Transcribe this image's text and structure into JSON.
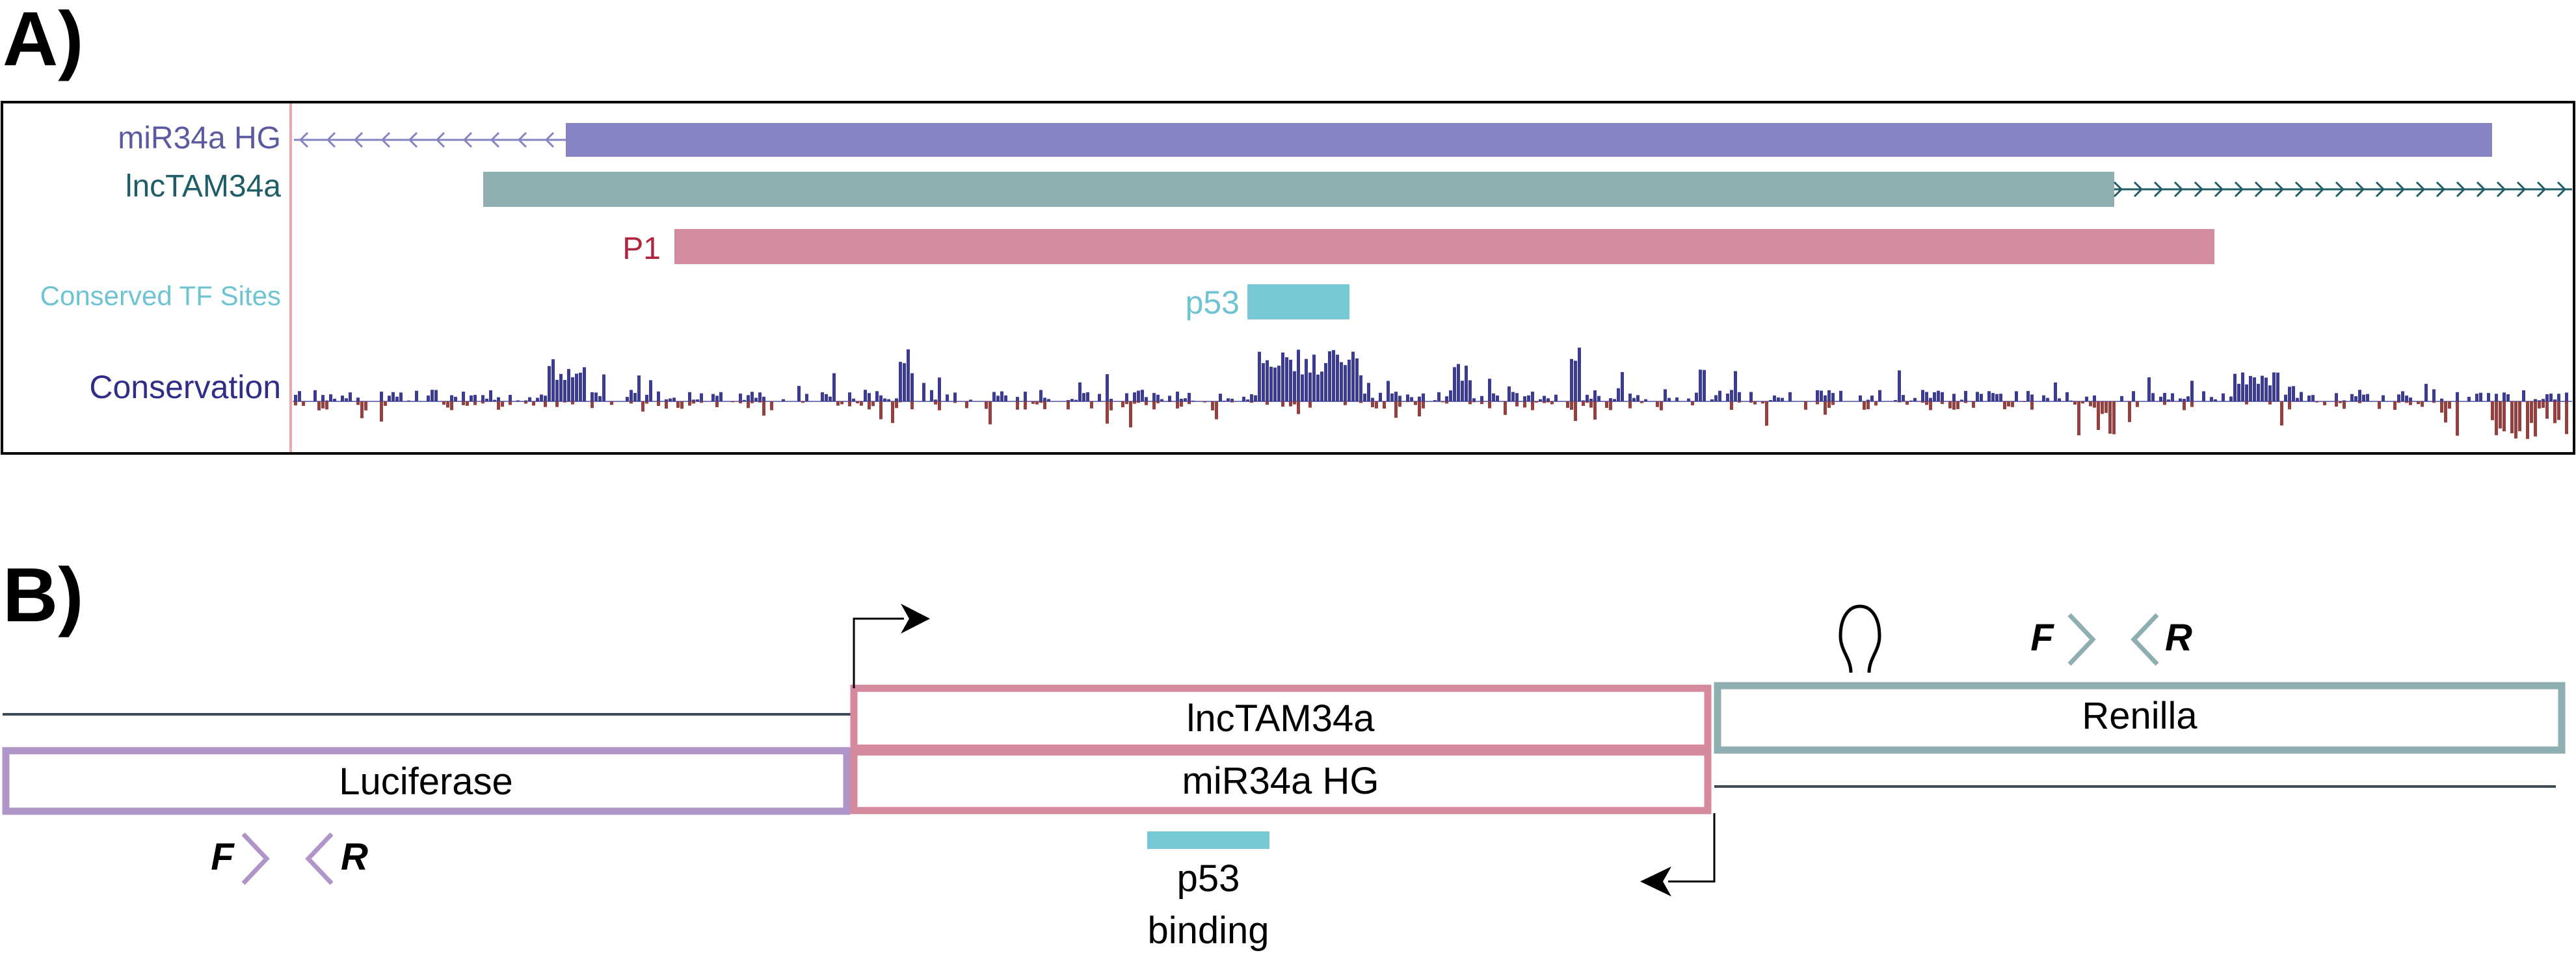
{
  "panel_a": {
    "letter": "A)",
    "tracks": {
      "mir34a_hg": {
        "label": "miR34a HG",
        "color": "#8583c1",
        "label_color": "#5b5aa0"
      },
      "lnctam34a": {
        "label": "lncTAM34a",
        "color": "#8eaeb1",
        "label_color": "#1f5e66"
      },
      "p1": {
        "label": "P1",
        "color": "#d68ca0",
        "label_color": "#b0243f"
      },
      "tf_sites": {
        "label": "Conserved TF Sites",
        "color": "#75c8d4",
        "label_color": "#6ec4d3"
      },
      "p53": {
        "label": "p53",
        "color": "#75c8d4"
      },
      "conservation": {
        "label": "Conservation",
        "label_color": "#2f2d86",
        "pos_color": "#3b3b91",
        "neg_color": "#94403f"
      }
    }
  },
  "panel_b": {
    "letter": "B)",
    "lnctam34a_box": "lncTAM34a",
    "mir34a_box": "miR34a HG",
    "luciferase_box": "Luciferase",
    "renilla_box": "Renilla",
    "primer_forward": "F",
    "primer_reverse": "R",
    "p53_line1": "p53",
    "p53_line2": "binding",
    "colors": {
      "pink": "#d4899c",
      "purple": "#b095c9",
      "teal": "#8eaeb1",
      "line": "#3c4a55",
      "p53": "#75c8d4"
    }
  }
}
